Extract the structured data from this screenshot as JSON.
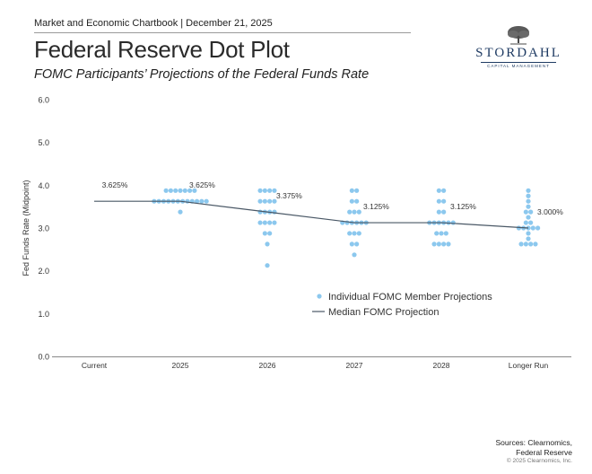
{
  "header": {
    "chartbook": "Market and Economic Chartbook | December 21, 2025",
    "title": "Federal Reserve Dot Plot",
    "subtitle": "FOMC Participants’ Projections of the Federal Funds Rate"
  },
  "logo": {
    "name": "STORDAHL",
    "tagline": "CAPITAL MANAGEMENT"
  },
  "footer": {
    "sources_line1": "Sources: Clearnomics,",
    "sources_line2": "Federal Reserve",
    "copyright": "© 2025 Clearnomics, Inc."
  },
  "colors": {
    "dot": "#8cc8ee",
    "median": "#4a5866",
    "axis": "#888888",
    "text": "#333333"
  },
  "chart_data": {
    "type": "scatter",
    "title": "Federal Reserve Dot Plot",
    "xlabel": "",
    "ylabel": "Fed Funds Rate (Midpoint)",
    "ylim": [
      0,
      6
    ],
    "yticks": [
      0,
      1,
      2,
      3,
      4,
      5,
      6
    ],
    "ytick_labels": [
      "0.0",
      "1.0",
      "2.0",
      "3.0",
      "4.0",
      "5.0",
      "6.0"
    ],
    "categories": [
      "Current",
      "2025",
      "2026",
      "2027",
      "2028",
      "Longer Run"
    ],
    "dots": [
      [],
      [
        [
          3.875,
          7
        ],
        [
          3.625,
          12
        ],
        [
          3.375,
          1
        ]
      ],
      [
        [
          3.875,
          4
        ],
        [
          3.625,
          4
        ],
        [
          3.375,
          4
        ],
        [
          3.125,
          4
        ],
        [
          2.875,
          2
        ],
        [
          2.625,
          1
        ],
        [
          2.125,
          1
        ]
      ],
      [
        [
          3.875,
          2
        ],
        [
          3.625,
          2
        ],
        [
          3.375,
          3
        ],
        [
          3.125,
          6
        ],
        [
          2.875,
          3
        ],
        [
          2.625,
          2
        ],
        [
          2.375,
          1
        ]
      ],
      [
        [
          3.875,
          2
        ],
        [
          3.625,
          2
        ],
        [
          3.375,
          2
        ],
        [
          3.125,
          6
        ],
        [
          2.875,
          3
        ],
        [
          2.625,
          4
        ]
      ],
      [
        [
          3.875,
          1
        ],
        [
          3.75,
          1
        ],
        [
          3.625,
          1
        ],
        [
          3.5,
          1
        ],
        [
          3.375,
          2
        ],
        [
          3.25,
          1
        ],
        [
          3.125,
          2
        ],
        [
          3.0,
          5
        ],
        [
          2.875,
          1
        ],
        [
          2.75,
          1
        ],
        [
          2.625,
          4
        ]
      ]
    ],
    "median": [
      3.625,
      3.625,
      3.375,
      3.125,
      3.125,
      3.0
    ],
    "median_labels": [
      "3.625%",
      "3.625%",
      "3.375%",
      "3.125%",
      "3.125%",
      "3.000%"
    ],
    "legend": {
      "dots": "Individual FOMC Member Projections",
      "median": "Median FOMC Projection",
      "placement": "bottom-right"
    }
  }
}
